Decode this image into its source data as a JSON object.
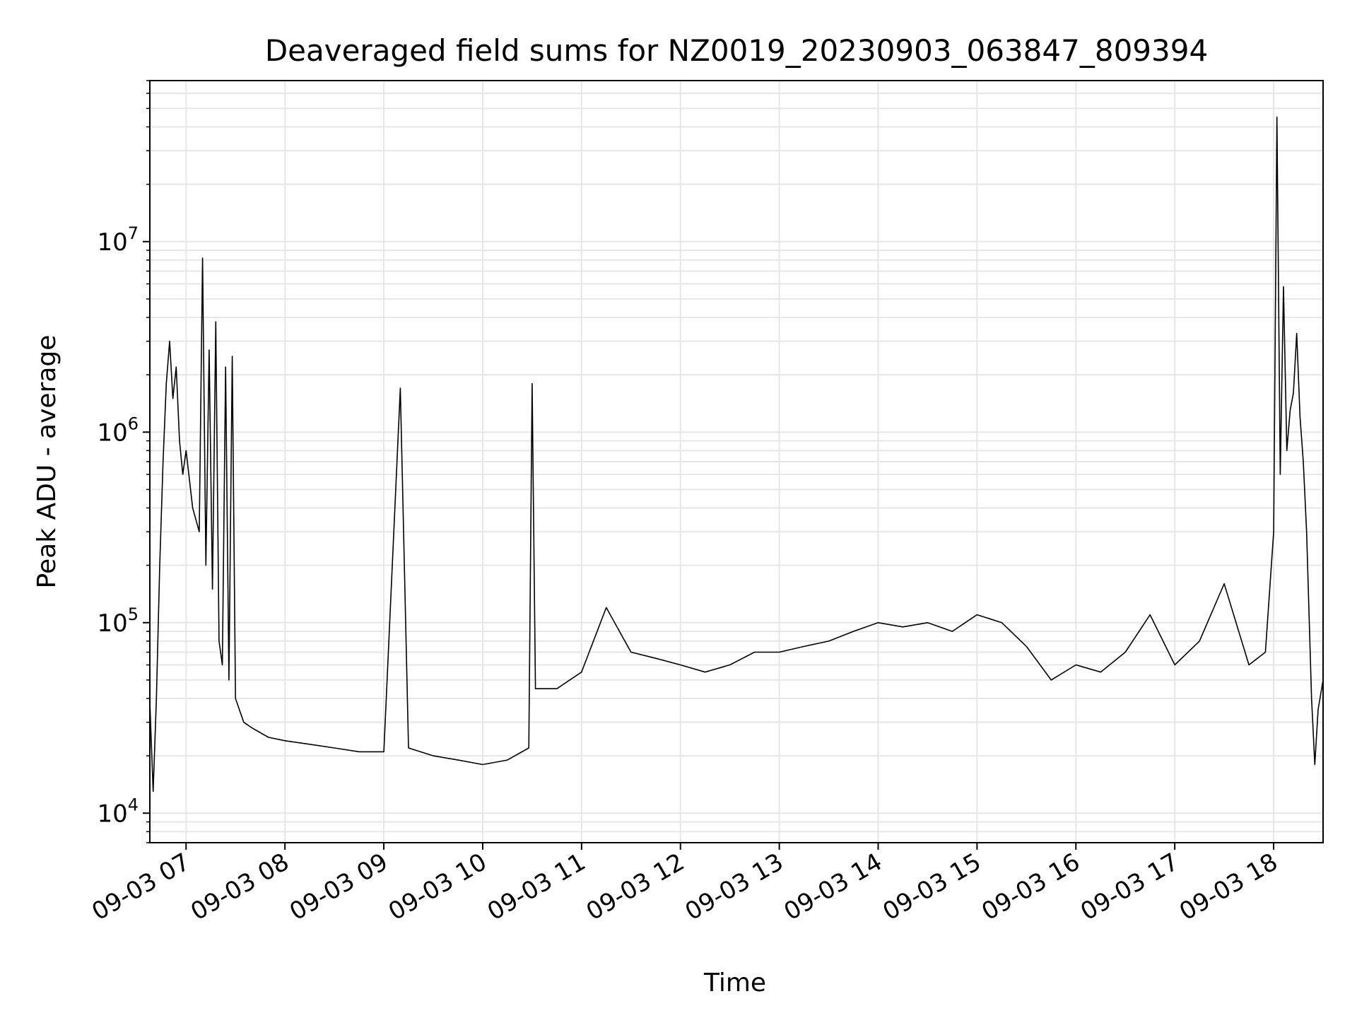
{
  "chart_data": {
    "type": "line",
    "title": "Deaveraged field sums for NZ0019_20230903_063847_809394",
    "xlabel": "Time",
    "ylabel": "Peak ADU - average",
    "yscale": "log",
    "ylim": [
      7000,
      70000000
    ],
    "xlim": [
      "2023-09-03 06:38",
      "2023-09-03 18:30"
    ],
    "grid": true,
    "legend": "none",
    "line_color": "#000000",
    "grid_color": "#e6e6e6",
    "x_ticks": [
      {
        "value": "2023-09-03 07:00",
        "label": "09-03 07"
      },
      {
        "value": "2023-09-03 08:00",
        "label": "09-03 08"
      },
      {
        "value": "2023-09-03 09:00",
        "label": "09-03 09"
      },
      {
        "value": "2023-09-03 10:00",
        "label": "09-03 10"
      },
      {
        "value": "2023-09-03 11:00",
        "label": "09-03 11"
      },
      {
        "value": "2023-09-03 12:00",
        "label": "09-03 12"
      },
      {
        "value": "2023-09-03 13:00",
        "label": "09-03 13"
      },
      {
        "value": "2023-09-03 14:00",
        "label": "09-03 14"
      },
      {
        "value": "2023-09-03 15:00",
        "label": "09-03 15"
      },
      {
        "value": "2023-09-03 16:00",
        "label": "09-03 16"
      },
      {
        "value": "2023-09-03 17:00",
        "label": "09-03 17"
      },
      {
        "value": "2023-09-03 18:00",
        "label": "09-03 18"
      }
    ],
    "y_ticks": [
      {
        "value": 10000,
        "base": "10",
        "exp": "4"
      },
      {
        "value": 100000,
        "base": "10",
        "exp": "5"
      },
      {
        "value": 1000000,
        "base": "10",
        "exp": "6"
      },
      {
        "value": 10000000,
        "base": "10",
        "exp": "7"
      }
    ],
    "series": [
      {
        "points": [
          [
            "2023-09-03 06:38",
            38000
          ],
          [
            "2023-09-03 06:40",
            13000
          ],
          [
            "2023-09-03 06:42",
            40000
          ],
          [
            "2023-09-03 06:44",
            200000
          ],
          [
            "2023-09-03 06:46",
            700000
          ],
          [
            "2023-09-03 06:48",
            1800000
          ],
          [
            "2023-09-03 06:50",
            3000000
          ],
          [
            "2023-09-03 06:52",
            1500000
          ],
          [
            "2023-09-03 06:54",
            2200000
          ],
          [
            "2023-09-03 06:56",
            900000
          ],
          [
            "2023-09-03 06:58",
            600000
          ],
          [
            "2023-09-03 07:00",
            800000
          ],
          [
            "2023-09-03 07:04",
            400000
          ],
          [
            "2023-09-03 07:08",
            300000
          ],
          [
            "2023-09-03 07:10",
            8200000
          ],
          [
            "2023-09-03 07:12",
            200000
          ],
          [
            "2023-09-03 07:14",
            2700000
          ],
          [
            "2023-09-03 07:16",
            150000
          ],
          [
            "2023-09-03 07:18",
            3800000
          ],
          [
            "2023-09-03 07:20",
            80000
          ],
          [
            "2023-09-03 07:22",
            60000
          ],
          [
            "2023-09-03 07:24",
            2200000
          ],
          [
            "2023-09-03 07:26",
            50000
          ],
          [
            "2023-09-03 07:28",
            2500000
          ],
          [
            "2023-09-03 07:30",
            40000
          ],
          [
            "2023-09-03 07:35",
            30000
          ],
          [
            "2023-09-03 07:40",
            28000
          ],
          [
            "2023-09-03 07:50",
            25000
          ],
          [
            "2023-09-03 08:00",
            24000
          ],
          [
            "2023-09-03 08:15",
            23000
          ],
          [
            "2023-09-03 08:30",
            22000
          ],
          [
            "2023-09-03 08:45",
            21000
          ],
          [
            "2023-09-03 09:00",
            21000
          ],
          [
            "2023-09-03 09:10",
            1700000
          ],
          [
            "2023-09-03 09:15",
            22000
          ],
          [
            "2023-09-03 09:30",
            20000
          ],
          [
            "2023-09-03 09:45",
            19000
          ],
          [
            "2023-09-03 10:00",
            18000
          ],
          [
            "2023-09-03 10:15",
            19000
          ],
          [
            "2023-09-03 10:28",
            22000
          ],
          [
            "2023-09-03 10:30",
            1800000
          ],
          [
            "2023-09-03 10:32",
            45000
          ],
          [
            "2023-09-03 10:45",
            45000
          ],
          [
            "2023-09-03 11:00",
            55000
          ],
          [
            "2023-09-03 11:15",
            120000
          ],
          [
            "2023-09-03 11:30",
            70000
          ],
          [
            "2023-09-03 11:45",
            65000
          ],
          [
            "2023-09-03 12:00",
            60000
          ],
          [
            "2023-09-03 12:15",
            55000
          ],
          [
            "2023-09-03 12:30",
            60000
          ],
          [
            "2023-09-03 12:45",
            70000
          ],
          [
            "2023-09-03 13:00",
            70000
          ],
          [
            "2023-09-03 13:15",
            75000
          ],
          [
            "2023-09-03 13:30",
            80000
          ],
          [
            "2023-09-03 13:45",
            90000
          ],
          [
            "2023-09-03 14:00",
            100000
          ],
          [
            "2023-09-03 14:15",
            95000
          ],
          [
            "2023-09-03 14:30",
            100000
          ],
          [
            "2023-09-03 14:45",
            90000
          ],
          [
            "2023-09-03 15:00",
            110000
          ],
          [
            "2023-09-03 15:15",
            100000
          ],
          [
            "2023-09-03 15:30",
            75000
          ],
          [
            "2023-09-03 15:45",
            50000
          ],
          [
            "2023-09-03 16:00",
            60000
          ],
          [
            "2023-09-03 16:15",
            55000
          ],
          [
            "2023-09-03 16:30",
            70000
          ],
          [
            "2023-09-03 16:45",
            110000
          ],
          [
            "2023-09-03 17:00",
            60000
          ],
          [
            "2023-09-03 17:15",
            80000
          ],
          [
            "2023-09-03 17:30",
            160000
          ],
          [
            "2023-09-03 17:45",
            60000
          ],
          [
            "2023-09-03 17:55",
            70000
          ],
          [
            "2023-09-03 18:00",
            300000
          ],
          [
            "2023-09-03 18:02",
            45000000
          ],
          [
            "2023-09-03 18:04",
            600000
          ],
          [
            "2023-09-03 18:06",
            5800000
          ],
          [
            "2023-09-03 18:08",
            800000
          ],
          [
            "2023-09-03 18:10",
            1300000
          ],
          [
            "2023-09-03 18:12",
            1600000
          ],
          [
            "2023-09-03 18:14",
            3300000
          ],
          [
            "2023-09-03 18:16",
            1200000
          ],
          [
            "2023-09-03 18:18",
            700000
          ],
          [
            "2023-09-03 18:20",
            300000
          ],
          [
            "2023-09-03 18:23",
            40000
          ],
          [
            "2023-09-03 18:25",
            18000
          ],
          [
            "2023-09-03 18:27",
            35000
          ],
          [
            "2023-09-03 18:30",
            50000
          ]
        ]
      }
    ]
  }
}
